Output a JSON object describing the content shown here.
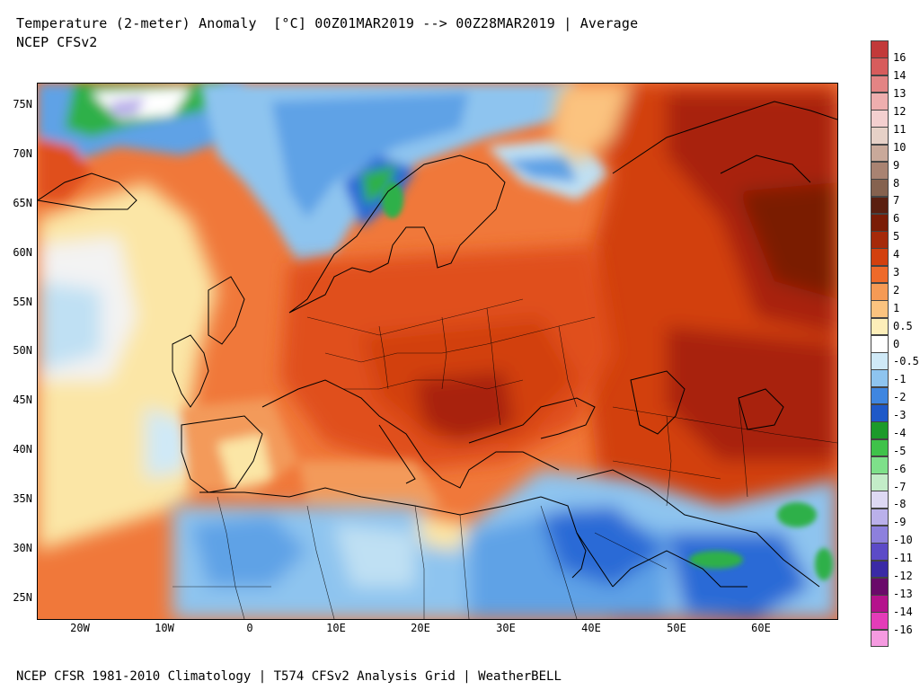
{
  "header": {
    "title": "Temperature (2-meter) Anomaly  [°C] 00Z01MAR2019 --> 00Z28MAR2019 | Average",
    "subtitle": "NCEP CFSv2"
  },
  "footer": {
    "text": "NCEP CFSR 1981-2010 Climatology | T574 CFSv2 Analysis Grid | WeatherBELL"
  },
  "axes": {
    "lat_labels": [
      "75N",
      "70N",
      "65N",
      "60N",
      "55N",
      "50N",
      "45N",
      "40N",
      "35N",
      "30N",
      "25N"
    ],
    "lon_labels": [
      "20W",
      "10W",
      "0",
      "10E",
      "20E",
      "30E",
      "40E",
      "50E",
      "60E"
    ]
  },
  "colorbar": {
    "labels": [
      "16",
      "14",
      "13",
      "12",
      "11",
      "10",
      "9",
      "8",
      "7",
      "6",
      "5",
      "4",
      "3",
      "2",
      "1",
      "0.5",
      "0",
      "-0.5",
      "-1",
      "-2",
      "-3",
      "-4",
      "-5",
      "-6",
      "-7",
      "-8",
      "-9",
      "-10",
      "-11",
      "-12",
      "-13",
      "-14",
      "-16"
    ],
    "colors": [
      "#c23a3a",
      "#d75c5c",
      "#e38484",
      "#eeaeae",
      "#f3cfcf",
      "#e6d1c7",
      "#c9a99a",
      "#a98372",
      "#85624f",
      "#5a1f10",
      "#7a1c06",
      "#a52a0a",
      "#d2400e",
      "#ee6a2a",
      "#f59a55",
      "#fbc37f",
      "#fdeeb9",
      "#ffffff",
      "#cfe9f7",
      "#8ec4ef",
      "#3f86e0",
      "#1f59c8",
      "#1c9a2a",
      "#3fc24a",
      "#7ee08a",
      "#c3ecc8",
      "#ded9f3",
      "#bab0ea",
      "#8d80dd",
      "#5c4bc7",
      "#3a2aa5",
      "#6a0a6a",
      "#b4128c",
      "#e43cb8",
      "#f59ae0"
    ]
  },
  "map": {
    "description_colors": {
      "warm_strong": "#a8200a",
      "warm": "#e0501c",
      "warm_light": "#f39a5a",
      "neutral": "#fbe6a6",
      "cool_light": "#bfe0f3",
      "cool": "#5fa2e6",
      "cold": "#2a6ad6",
      "green": "#2fb04a"
    }
  }
}
